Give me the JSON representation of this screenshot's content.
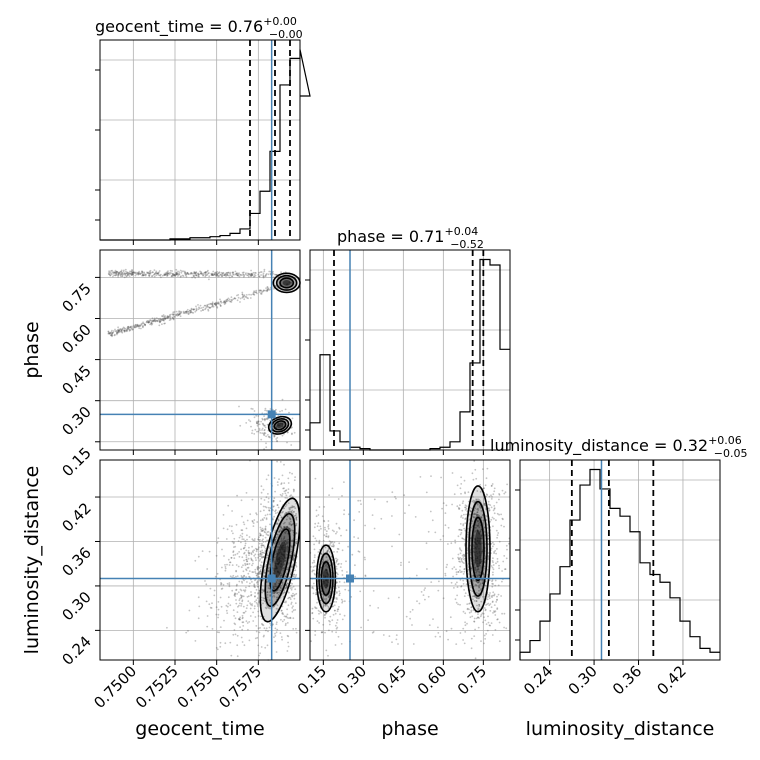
{
  "chart_data": {
    "type": "corner",
    "grid": true,
    "parameters": [
      "geocent_time",
      "phase",
      "luminosity_distance"
    ],
    "truth": {
      "geocent_time": 0.7583,
      "phase": 0.25,
      "luminosity_distance": 0.31
    },
    "truth_color": "#4682b4",
    "panels": {
      "geocent_time": {
        "title": "geocent_time = 0.76",
        "sup": "+0.00",
        "sub": "−0.00",
        "xlim": [
          0.748,
          0.76
        ],
        "xticks": [
          0.75,
          0.7525,
          0.755,
          0.7575
        ],
        "xtick_labels": [
          "0.7500",
          "0.7525",
          "0.7550",
          "0.7575"
        ],
        "quantiles": [
          0.757,
          0.7585,
          0.7594
        ],
        "hist": {
          "edges_start": 0.748,
          "bin_width": 0.0006,
          "counts": [
            0,
            0,
            0,
            0,
            0,
            0,
            0,
            0.5,
            0.5,
            1,
            1,
            1.5,
            2,
            3,
            5,
            12,
            22,
            40,
            70,
            82,
            86,
            65
          ]
        }
      },
      "phase": {
        "title": "phase = 0.71",
        "sup": "+0.04",
        "sub": "−0.52",
        "xlim": [
          0.1,
          0.85
        ],
        "ylim": [
          0.12,
          0.85
        ],
        "ticks": [
          0.15,
          0.3,
          0.45,
          0.6,
          0.75
        ],
        "tick_labels": [
          "0.15",
          "0.30",
          "0.45",
          "0.60",
          "0.75"
        ],
        "quantiles": [
          0.19,
          0.71,
          0.75
        ],
        "hist": {
          "edges_start": 0.1,
          "bin_width": 0.0375,
          "counts": [
            10,
            35,
            7,
            3,
            1,
            0.5,
            0,
            0,
            0,
            0,
            0,
            0,
            0.5,
            1,
            3,
            14,
            32,
            70,
            68,
            37
          ]
        }
      },
      "luminosity_distance": {
        "title": "luminosity_distance = 0.32",
        "sup": "+0.06",
        "sub": "−0.05",
        "xlim": [
          0.2,
          0.47
        ],
        "ylim": [
          0.2,
          0.47
        ],
        "ticks": [
          0.24,
          0.3,
          0.36,
          0.42
        ],
        "tick_labels": [
          "0.24",
          "0.30",
          "0.36",
          "0.42"
        ],
        "quantiles": [
          0.27,
          0.32,
          0.38
        ],
        "hist": {
          "edges_start": 0.2,
          "bin_width": 0.0135,
          "counts": [
            2,
            5,
            10,
            17,
            24,
            36,
            45,
            49,
            44,
            39,
            37,
            33,
            25,
            22,
            20,
            16,
            10,
            6,
            3,
            2
          ]
        }
      }
    },
    "axis_labels": {
      "x": [
        "geocent_time",
        "phase",
        "luminosity_distance"
      ],
      "y": [
        "phase",
        "luminosity_distance"
      ]
    }
  }
}
